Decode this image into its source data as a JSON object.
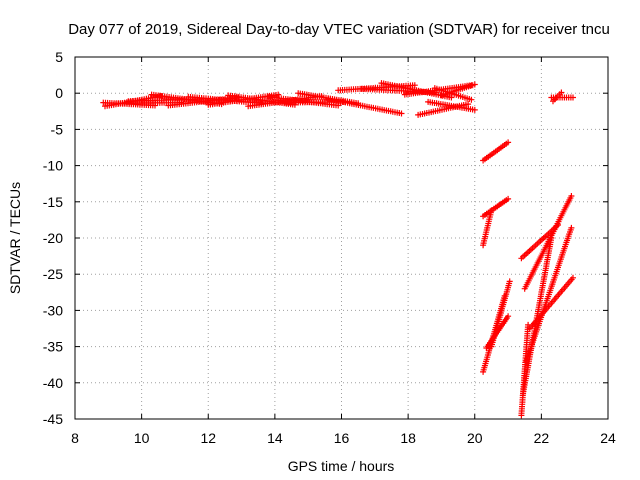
{
  "chart_data": {
    "type": "scatter",
    "title": "Day 077 of 2019, Sidereal Day-to-day VTEC variation (SDTVAR) for receiver tncu",
    "xlabel": "GPS time / hours",
    "ylabel": "SDTVAR / TECUs",
    "xlim": [
      8,
      24
    ],
    "ylim": [
      -45,
      5
    ],
    "xticks": [
      8,
      10,
      12,
      14,
      16,
      18,
      20,
      22,
      24
    ],
    "yticks": [
      5,
      0,
      -5,
      -10,
      -15,
      -20,
      -25,
      -30,
      -35,
      -40,
      -45
    ],
    "grid": true,
    "marker": "+",
    "color": "#ff0000",
    "segments": [
      {
        "start": [
          8.85,
          -1.3
        ],
        "end": [
          10.4,
          -1.7
        ]
      },
      {
        "start": [
          8.9,
          -1.8
        ],
        "end": [
          10.6,
          -0.4
        ]
      },
      {
        "start": [
          9.3,
          -1.4
        ],
        "end": [
          11.2,
          -1.3
        ]
      },
      {
        "start": [
          9.6,
          -1.1
        ],
        "end": [
          11.8,
          -0.8
        ]
      },
      {
        "start": [
          10.3,
          -0.2
        ],
        "end": [
          12.4,
          -1.5
        ]
      },
      {
        "start": [
          10.8,
          -1.7
        ],
        "end": [
          12.9,
          -0.6
        ]
      },
      {
        "start": [
          11.4,
          -0.5
        ],
        "end": [
          13.6,
          -1.4
        ]
      },
      {
        "start": [
          12.0,
          -1.6
        ],
        "end": [
          14.1,
          -0.2
        ]
      },
      {
        "start": [
          12.6,
          -0.3
        ],
        "end": [
          14.6,
          -1.6
        ]
      },
      {
        "start": [
          13.2,
          -1.8
        ],
        "end": [
          15.4,
          -0.4
        ]
      },
      {
        "start": [
          13.8,
          -0.5
        ],
        "end": [
          15.9,
          -1.7
        ]
      },
      {
        "start": [
          14.3,
          -1.3
        ],
        "end": [
          16.1,
          -1.2
        ]
      },
      {
        "start": [
          14.7,
          0.0
        ],
        "end": [
          16.5,
          -1.4
        ]
      },
      {
        "start": [
          15.6,
          -0.8
        ],
        "end": [
          17.8,
          -2.8
        ]
      },
      {
        "start": [
          15.9,
          0.4
        ],
        "end": [
          18.2,
          1.1
        ]
      },
      {
        "start": [
          16.6,
          0.6
        ],
        "end": [
          18.8,
          0.1
        ]
      },
      {
        "start": [
          17.2,
          1.4
        ],
        "end": [
          19.3,
          -0.6
        ]
      },
      {
        "start": [
          17.9,
          -0.2
        ],
        "end": [
          19.9,
          1.1
        ]
      },
      {
        "start": [
          18.3,
          -3.0
        ],
        "end": [
          19.8,
          -1.5
        ]
      },
      {
        "start": [
          18.6,
          -1.2
        ],
        "end": [
          20.0,
          -2.3
        ]
      },
      {
        "start": [
          18.8,
          0.7
        ],
        "end": [
          19.9,
          -0.9
        ]
      },
      {
        "start": [
          19.0,
          -0.3
        ],
        "end": [
          20.0,
          1.2
        ]
      },
      {
        "start": [
          20.25,
          -9.3
        ],
        "end": [
          21.0,
          -6.8
        ]
      },
      {
        "start": [
          20.25,
          -21.0
        ],
        "end": [
          20.5,
          -16.2
        ]
      },
      {
        "start": [
          20.25,
          -17.0
        ],
        "end": [
          21.0,
          -14.6
        ]
      },
      {
        "start": [
          20.25,
          -38.5
        ],
        "end": [
          20.9,
          -28.0
        ]
      },
      {
        "start": [
          20.35,
          -35.2
        ],
        "end": [
          21.0,
          -30.8
        ]
      },
      {
        "start": [
          20.5,
          -35.0
        ],
        "end": [
          21.05,
          -26.0
        ]
      },
      {
        "start": [
          21.4,
          -44.5
        ],
        "end": [
          21.6,
          -32.0
        ]
      },
      {
        "start": [
          21.45,
          -41.5
        ],
        "end": [
          22.3,
          -20.0
        ]
      },
      {
        "start": [
          21.55,
          -37.0
        ],
        "end": [
          22.9,
          -18.6
        ]
      },
      {
        "start": [
          21.5,
          -27.0
        ],
        "end": [
          22.9,
          -14.2
        ]
      },
      {
        "start": [
          21.65,
          -32.5
        ],
        "end": [
          22.95,
          -25.5
        ]
      },
      {
        "start": [
          21.4,
          -22.8
        ],
        "end": [
          22.5,
          -18.2
        ]
      },
      {
        "start": [
          22.3,
          -0.6
        ],
        "end": [
          22.95,
          -0.6
        ]
      },
      {
        "start": [
          22.35,
          -1.1
        ],
        "end": [
          22.6,
          0.1
        ]
      }
    ]
  }
}
